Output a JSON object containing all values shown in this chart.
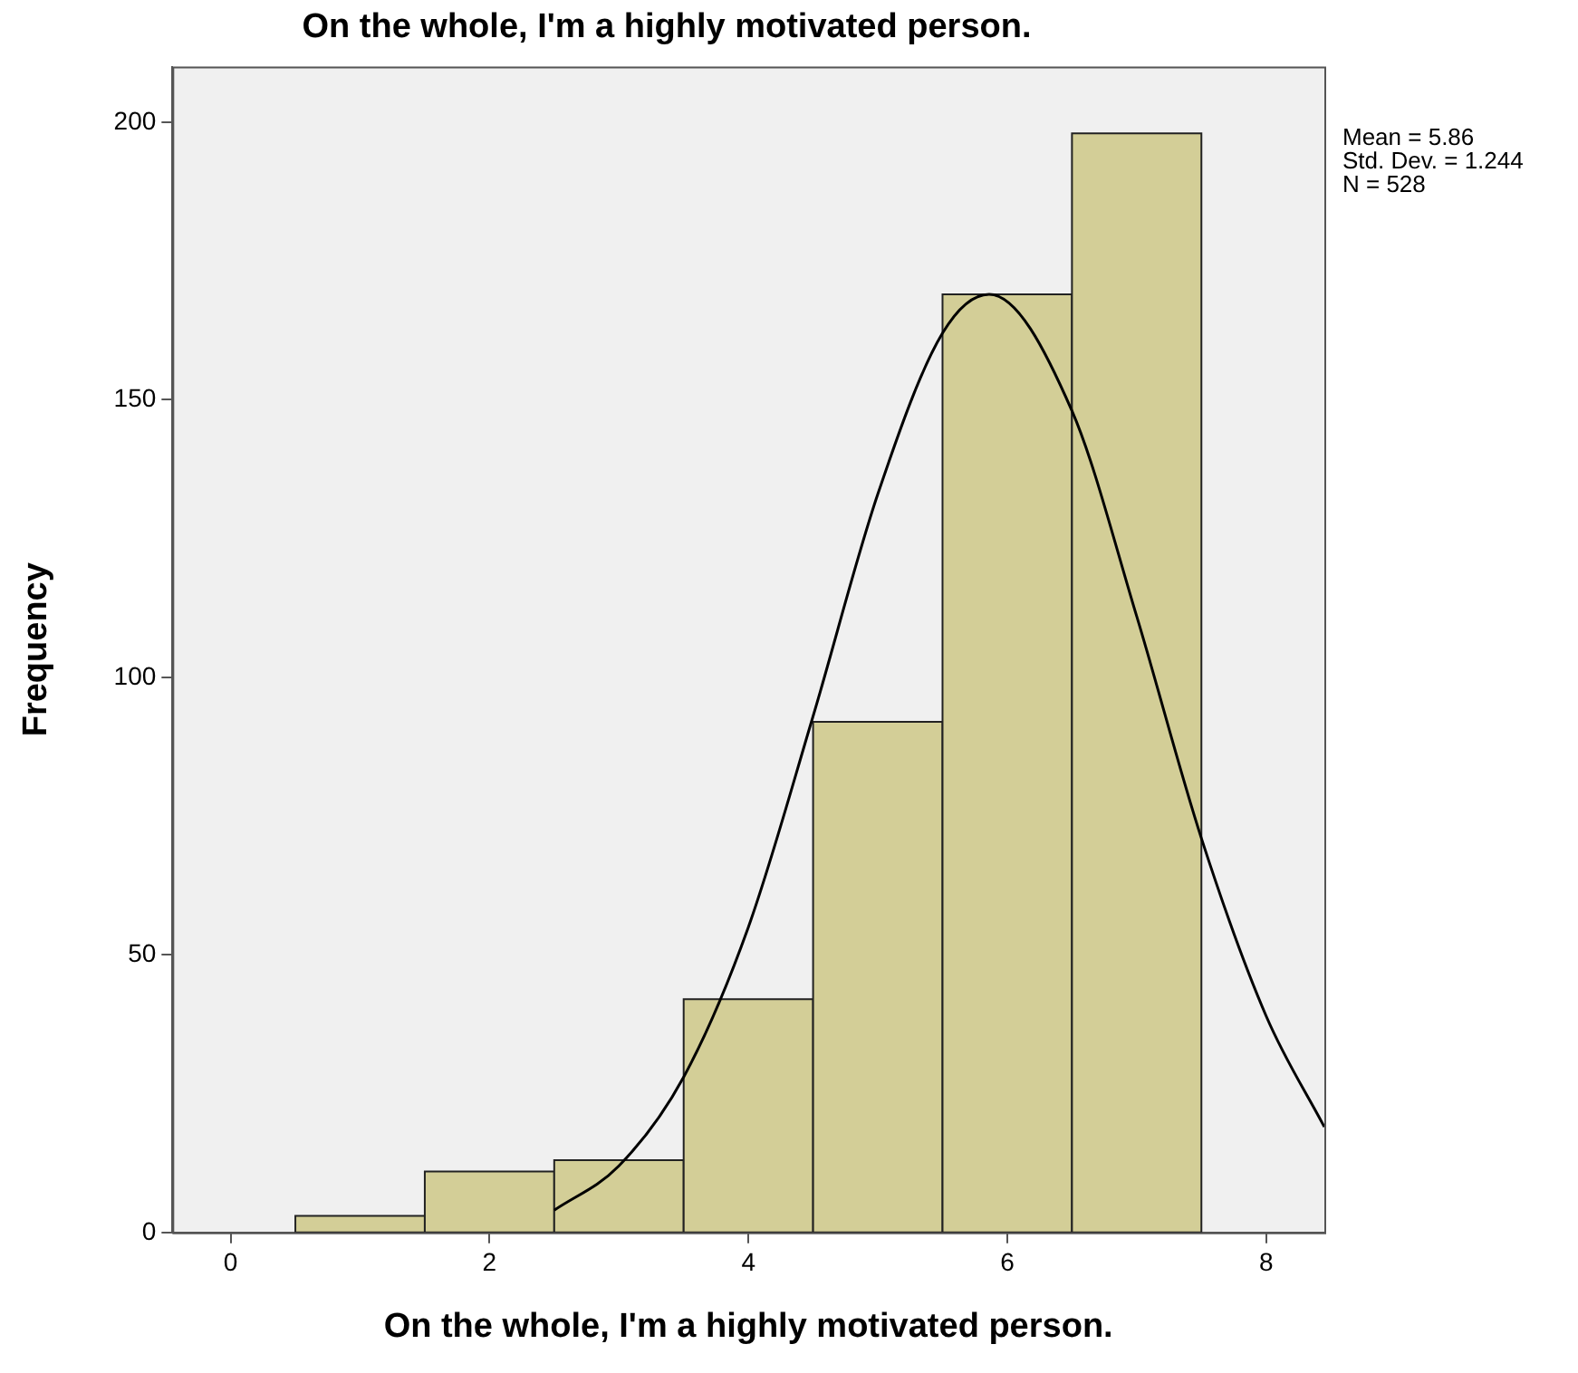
{
  "chart_data": {
    "type": "histogram",
    "title": "On the whole, I'm a highly motivated person.",
    "xlabel": "On the whole, I'm a highly motivated person.",
    "ylabel": "Frequency",
    "bins": [
      0.5,
      1.5,
      2.5,
      3.5,
      4.5,
      5.5,
      6.5,
      7.5
    ],
    "values": [
      3,
      11,
      13,
      42,
      92,
      169,
      198
    ],
    "color": "#d3ce97",
    "series": [
      {
        "type": "line",
        "color": "#000000",
        "x": [
          2.5,
          3,
          3.5,
          4,
          4.5,
          5,
          5.5,
          5.86,
          6.5,
          7,
          7.5,
          8,
          8.45
        ],
        "values": [
          4,
          12,
          28,
          55,
          93,
          133,
          162,
          169,
          148,
          111,
          71,
          39,
          19
        ]
      }
    ],
    "xlim": [
      -0.45,
      8.45
    ],
    "xticks": [
      0,
      2,
      4,
      6,
      8
    ],
    "ylim": [
      0,
      210
    ],
    "yticks": [
      0,
      50,
      100,
      150,
      200
    ],
    "grid": false,
    "legend": false,
    "marker": "none",
    "annotations": [
      "Mean = 5.86",
      "Std. Dev. = 1.244",
      "N = 528"
    ]
  }
}
